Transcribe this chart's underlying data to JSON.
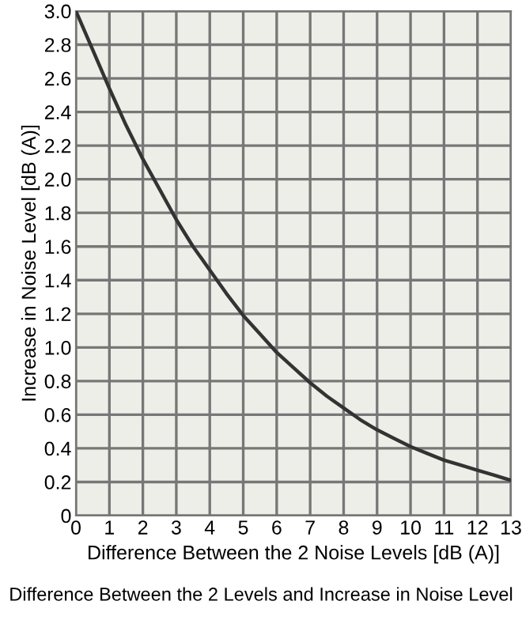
{
  "chart_data": {
    "type": "line",
    "xlabel": "Difference Between the 2 Noise Levels [dB (A)]",
    "ylabel": "Increase in Noise Level [dB (A)]",
    "annotations": [
      "Difference Between the 2 Levels and Increase in Noise Level"
    ],
    "x": [
      0,
      0.5,
      1,
      1.5,
      2,
      2.5,
      3,
      3.5,
      4,
      4.5,
      5,
      5.5,
      6,
      6.5,
      7,
      7.5,
      8,
      8.5,
      9,
      9.5,
      10,
      10.5,
      11,
      11.5,
      12,
      12.5,
      13
    ],
    "series": [
      {
        "color": "#333333",
        "values": [
          3.0,
          2.77,
          2.54,
          2.32,
          2.12,
          1.94,
          1.76,
          1.6,
          1.46,
          1.32,
          1.19,
          1.08,
          0.97,
          0.88,
          0.79,
          0.71,
          0.64,
          0.57,
          0.51,
          0.46,
          0.41,
          0.37,
          0.33,
          0.3,
          0.27,
          0.24,
          0.21
        ]
      }
    ],
    "xlim": [
      0,
      13
    ],
    "xticks": [
      0,
      1,
      2,
      3,
      4,
      5,
      6,
      7,
      8,
      9,
      10,
      11,
      12,
      13
    ],
    "ylim": [
      0,
      3
    ],
    "yticks": [
      0,
      0.2,
      0.4,
      0.6,
      0.8,
      {
        "value": 1,
        "label": "1.0"
      },
      1.2,
      1.4,
      1.6,
      1.8,
      {
        "value": 2,
        "label": "2.0"
      },
      2.2,
      2.4,
      2.6,
      2.8,
      {
        "value": 3,
        "label": "3.0"
      }
    ],
    "grid": true,
    "marker": "none",
    "line_style": "solid"
  }
}
